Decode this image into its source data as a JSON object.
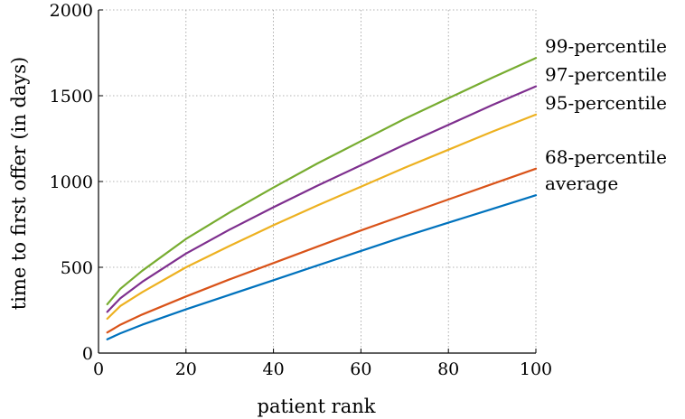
{
  "chart_data": {
    "type": "line",
    "title": "",
    "xlabel": "patient rank",
    "ylabel": "time to first offer (in days)",
    "xlim": [
      0,
      100
    ],
    "ylim": [
      0,
      2000
    ],
    "xticks": [
      0,
      20,
      40,
      60,
      80,
      100
    ],
    "yticks": [
      0,
      500,
      1000,
      1500,
      2000
    ],
    "grid": true,
    "legend": "labels at right end of each line",
    "x": [
      2,
      5,
      10,
      20,
      30,
      40,
      50,
      60,
      70,
      80,
      90,
      100
    ],
    "series": [
      {
        "name": "99-percentile",
        "color": "#77ac30",
        "values": [
          285,
          375,
          480,
          665,
          820,
          965,
          1105,
          1235,
          1365,
          1485,
          1605,
          1720
        ]
      },
      {
        "name": "97-percentile",
        "color": "#7e2f8e",
        "values": [
          240,
          320,
          415,
          580,
          720,
          850,
          975,
          1095,
          1215,
          1330,
          1445,
          1555
        ]
      },
      {
        "name": "95-percentile",
        "color": "#edb120",
        "values": [
          200,
          275,
          355,
          500,
          625,
          745,
          860,
          970,
          1080,
          1185,
          1290,
          1390
        ]
      },
      {
        "name": "68-percentile",
        "color": "#d95319",
        "values": [
          120,
          165,
          225,
          330,
          430,
          525,
          620,
          715,
          805,
          895,
          985,
          1075
        ]
      },
      {
        "name": "average",
        "color": "#0072bd",
        "values": [
          80,
          115,
          165,
          255,
          340,
          425,
          510,
          595,
          680,
          760,
          840,
          920
        ]
      }
    ]
  }
}
